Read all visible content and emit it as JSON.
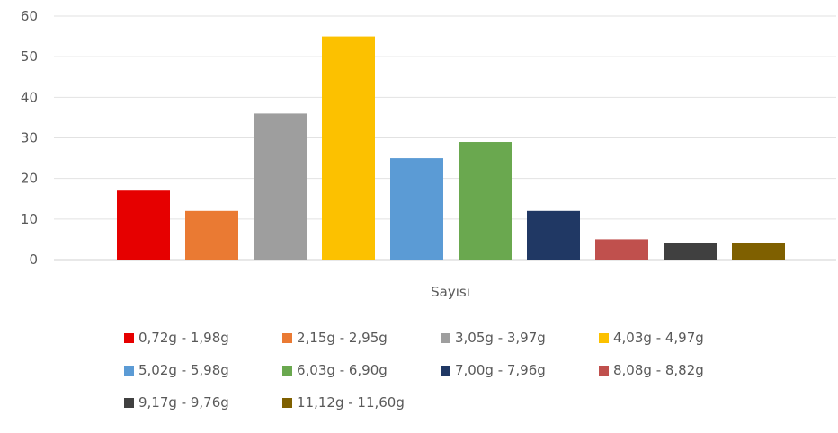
{
  "chart_data": {
    "type": "bar",
    "xlabel": "Sayısı",
    "ylabel": "",
    "ylim": [
      0,
      60
    ],
    "yticks": [
      "0",
      "10",
      "20",
      "30",
      "40",
      "50",
      "60"
    ],
    "grid": true,
    "legend_position": "bottom",
    "categories": [
      "Sayısı"
    ],
    "series": [
      {
        "name": "0,72g - 1,98g",
        "values": [
          17
        ],
        "color": "#e60000"
      },
      {
        "name": "2,15g - 2,95g",
        "values": [
          12
        ],
        "color": "#ea7a33"
      },
      {
        "name": "3,05g - 3,97g",
        "values": [
          36
        ],
        "color": "#9e9e9e"
      },
      {
        "name": "4,03g - 4,97g",
        "values": [
          55
        ],
        "color": "#fcc100"
      },
      {
        "name": "5,02g - 5,98g",
        "values": [
          25
        ],
        "color": "#5b9bd5"
      },
      {
        "name": "6,03g - 6,90g",
        "values": [
          29
        ],
        "color": "#6aa84f"
      },
      {
        "name": "7,00g - 7,96g",
        "values": [
          12
        ],
        "color": "#203864"
      },
      {
        "name": "8,08g - 8,82g",
        "values": [
          5
        ],
        "color": "#c0504d"
      },
      {
        "name": "9,17g - 9,76g",
        "values": [
          4
        ],
        "color": "#404040"
      },
      {
        "name": "11,12g - 11,60g",
        "values": [
          4
        ],
        "color": "#7f6000"
      }
    ]
  }
}
